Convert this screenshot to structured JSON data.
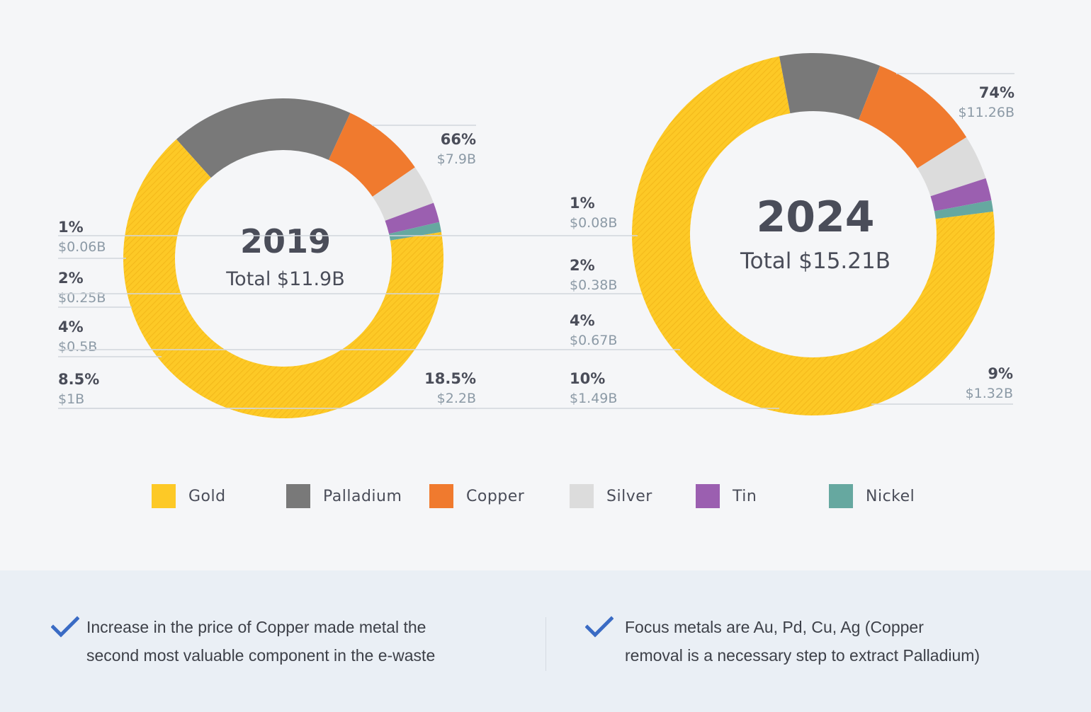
{
  "chart_data": [
    {
      "type": "pie",
      "title": "2019",
      "subtitle": "Total $11.9B",
      "categories": [
        "Gold",
        "Palladium",
        "Copper",
        "Silver",
        "Tin",
        "Nickel"
      ],
      "values": [
        66,
        18.5,
        8.5,
        4,
        2,
        1
      ],
      "value_labels": [
        "66%",
        "18.5%",
        "8.5%",
        "4%",
        "2%",
        "1%"
      ],
      "amounts": [
        "$7.9B",
        "$2.2B",
        "$1B",
        "$0.5B",
        "$0.25B",
        "$0.06B"
      ]
    },
    {
      "type": "pie",
      "title": "2024",
      "subtitle": "Total $15.21B",
      "categories": [
        "Gold",
        "Palladium",
        "Copper",
        "Silver",
        "Tin",
        "Nickel"
      ],
      "values": [
        74,
        9,
        10,
        4,
        2,
        1
      ],
      "value_labels": [
        "74%",
        "9%",
        "10%",
        "4%",
        "2%",
        "1%"
      ],
      "amounts": [
        "$11.26B",
        "$1.32B",
        "$1.49B",
        "$0.67B",
        "$0.38B",
        "$0.08B"
      ]
    }
  ],
  "legend": [
    {
      "label": "Gold",
      "color": "#fdc926"
    },
    {
      "label": "Palladium",
      "color": "#797979"
    },
    {
      "label": "Copper",
      "color": "#f07a2e"
    },
    {
      "label": "Silver",
      "color": "#dcdcdc"
    },
    {
      "label": "Tin",
      "color": "#9b5fb0"
    },
    {
      "label": "Nickel",
      "color": "#66a8a0"
    }
  ],
  "notes": {
    "left": {
      "line1": "Increase in the price of Copper made metal the",
      "line2": "second most valuable component in the e-waste"
    },
    "right": {
      "line1": "Focus metals are Au, Pd, Cu, Ag (Copper",
      "line2": "removal is a necessary step to extract Palladium)"
    }
  },
  "colors": {
    "check": "#3a6bc4",
    "text_dark": "#4a4d59",
    "text_muted": "#8c9aa6"
  }
}
